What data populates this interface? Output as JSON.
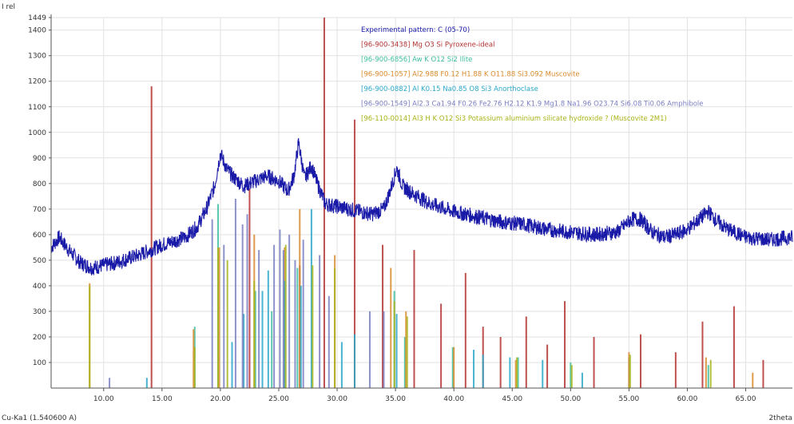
{
  "chart_data": {
    "type": "line",
    "title": "",
    "xlabel": "2theta",
    "ylabel": "I rel",
    "xlim": [
      5.5,
      69.0
    ],
    "ylim": [
      0,
      1449
    ],
    "yticks": [
      100,
      200,
      300,
      400,
      500,
      600,
      700,
      800,
      900,
      1000,
      1100,
      1200,
      1300,
      1400,
      1449
    ],
    "ytick_labels": [
      "100",
      "200",
      "300",
      "400",
      "500",
      "600",
      "700",
      "800",
      "900",
      "1000",
      "1100",
      "1200",
      "1300",
      "1400",
      "1449"
    ],
    "xticks": [
      10,
      15,
      20,
      25,
      30,
      35,
      40,
      45,
      50,
      55,
      60,
      65
    ],
    "xtick_labels": [
      "10.00",
      "15.00",
      "20.00",
      "25.00",
      "30.00",
      "35.00",
      "40.00",
      "45.00",
      "50.00",
      "55.00",
      "60.00",
      "65.00"
    ],
    "grid": true,
    "radiation_label": "Cu-Ka1 (1.540600 A)",
    "series": [
      {
        "name": "Experimental pattern: C (05-70)",
        "color": "#1a1aa8",
        "kind": "profile",
        "x": [
          5.5,
          6.2,
          7,
          8,
          9,
          10,
          11,
          12,
          13,
          14,
          15,
          16,
          17,
          18,
          18.8,
          19.5,
          20,
          20.5,
          21,
          22,
          23,
          24,
          25,
          25.8,
          26.3,
          26.7,
          27.2,
          27.8,
          28.3,
          29,
          30,
          31,
          32,
          33,
          34,
          34.6,
          35.1,
          35.6,
          36.5,
          38,
          40,
          42,
          44,
          46,
          48,
          50,
          52,
          54,
          55.2,
          56,
          57,
          58,
          59,
          60,
          61,
          61.8,
          62.6,
          63.5,
          65,
          67,
          69
        ],
        "y": [
          550,
          590,
          540,
          490,
          470,
          480,
          490,
          505,
          520,
          540,
          560,
          575,
          590,
          630,
          700,
          790,
          920,
          860,
          830,
          790,
          810,
          830,
          810,
          770,
          830,
          960,
          820,
          870,
          800,
          720,
          710,
          700,
          690,
          680,
          700,
          780,
          860,
          790,
          760,
          720,
          690,
          670,
          650,
          640,
          620,
          610,
          600,
          610,
          660,
          660,
          610,
          590,
          600,
          620,
          660,
          690,
          650,
          620,
          590,
          580,
          590
        ]
      },
      {
        "name": "[96-900-3438] Mg O3 Si  Pyroxene-ideal",
        "color": "#b33232",
        "kind": "sticks",
        "x": [
          14.1,
          22.5,
          26.8,
          28.9,
          31.5,
          33.9,
          36.6,
          38.9,
          41.0,
          42.5,
          44.0,
          46.2,
          48.0,
          49.5,
          52.0,
          56.0,
          59.0,
          61.3,
          64.0,
          66.5
        ],
        "y": [
          1180,
          780,
          480,
          1449,
          1050,
          560,
          540,
          330,
          450,
          240,
          200,
          280,
          170,
          340,
          200,
          210,
          140,
          260,
          320,
          110
        ]
      },
      {
        "name": "[96-900-6856] Aw K O12 Si2  Ilite",
        "color": "#3fbf9f",
        "kind": "sticks",
        "x": [
          17.8,
          19.8,
          23.0,
          24.4,
          26.6,
          34.9,
          35.8,
          39.9,
          45.5,
          50.0,
          55.0,
          61.8
        ],
        "y": [
          240,
          720,
          380,
          300,
          470,
          380,
          200,
          160,
          120,
          100,
          120,
          90
        ]
      },
      {
        "name": "[96-900-1057] Al2.988 F0.12 H1.88 K O11.88 Si3.092  Muscovite",
        "color": "#d98a2c",
        "kind": "sticks",
        "x": [
          8.8,
          17.7,
          19.9,
          22.9,
          25.5,
          26.8,
          29.8,
          34.6,
          35.9,
          40.0,
          45.3,
          55.0,
          61.6,
          65.6
        ],
        "y": [
          410,
          230,
          550,
          600,
          550,
          700,
          520,
          470,
          300,
          160,
          110,
          140,
          120,
          60
        ]
      },
      {
        "name": "[96-900-0882] Al K0.15 Na0.85 O8 Si3  Anorthoclase",
        "color": "#2aa7c9",
        "kind": "sticks",
        "x": [
          13.7,
          21.0,
          22.0,
          23.6,
          24.1,
          25.5,
          26.9,
          27.8,
          30.4,
          31.5,
          35.1,
          41.7,
          42.5,
          44.8,
          47.6,
          51.0
        ],
        "y": [
          40,
          180,
          290,
          380,
          460,
          420,
          400,
          700,
          180,
          210,
          290,
          150,
          130,
          120,
          110,
          60
        ]
      },
      {
        "name": "[96-900-1549] Al2.3 Ca1.94 F0.26 Fe2.76 H2.12 K1.9 Mg1.8 Na1.96 O23.74 Si6.08 Ti0.06  Amphibole",
        "color": "#7a7fc2",
        "kind": "sticks",
        "x": [
          10.5,
          19.3,
          20.3,
          21.3,
          21.9,
          22.3,
          23.3,
          24.6,
          25.1,
          25.4,
          25.9,
          26.4,
          27.1,
          28.5,
          29.3,
          32.8,
          34.0
        ],
        "y": [
          40,
          660,
          560,
          740,
          640,
          680,
          540,
          560,
          620,
          540,
          600,
          500,
          580,
          520,
          360,
          300,
          300
        ]
      },
      {
        "name": "[96-110-0014] Al3 H K O12 Si3  Potassium aluminium silicate hydroxide ? (Muscovite 2M1)",
        "color": "#a8b419",
        "kind": "sticks",
        "x": [
          8.8,
          17.8,
          19.8,
          20.6,
          22.9,
          25.6,
          27.9,
          29.8,
          34.9,
          36.0,
          45.4,
          50.1,
          55.1,
          62.0
        ],
        "y": [
          400,
          160,
          550,
          500,
          420,
          560,
          480,
          470,
          340,
          280,
          120,
          90,
          130,
          110
        ]
      }
    ]
  }
}
